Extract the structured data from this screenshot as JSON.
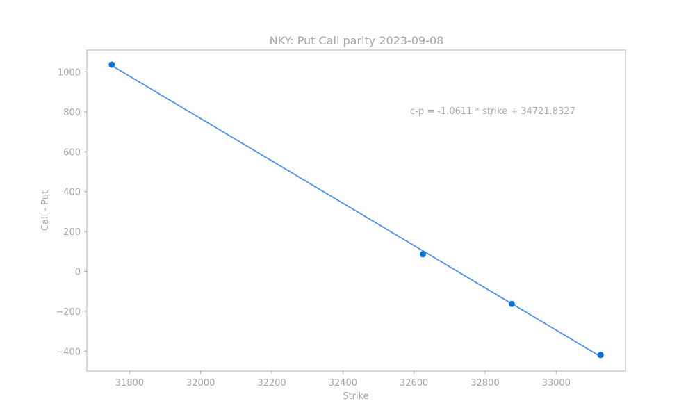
{
  "chart_data": {
    "type": "scatter",
    "title": "NKY: Put Call parity 2023-09-08",
    "xlabel": "Strike",
    "ylabel": "Call - Put",
    "xlim": [
      31680,
      33195
    ],
    "ylim": [
      -500,
      1110
    ],
    "xticks": [
      31800,
      32000,
      32200,
      32400,
      32600,
      32800,
      33000
    ],
    "yticks": [
      -400,
      -200,
      0,
      200,
      400,
      600,
      800,
      1000
    ],
    "points": [
      {
        "x": 31750,
        "y": 1037
      },
      {
        "x": 32625,
        "y": 86
      },
      {
        "x": 32875,
        "y": -163
      },
      {
        "x": 33125,
        "y": -419
      }
    ],
    "fit_line": {
      "slope": -1.0611,
      "intercept": 34721.8327,
      "x_range": [
        31750,
        33125
      ]
    },
    "annotation": "c-p = -1.0611 * strike + 34721.8327",
    "point_color": "#0b6fd6",
    "line_color": "#4a8ff5",
    "grid": false,
    "legend": "none"
  }
}
